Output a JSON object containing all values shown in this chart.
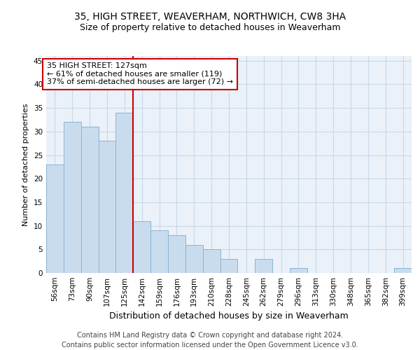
{
  "title1": "35, HIGH STREET, WEAVERHAM, NORTHWICH, CW8 3HA",
  "title2": "Size of property relative to detached houses in Weaverham",
  "xlabel": "Distribution of detached houses by size in Weaverham",
  "ylabel": "Number of detached properties",
  "categories": [
    "56sqm",
    "73sqm",
    "90sqm",
    "107sqm",
    "125sqm",
    "142sqm",
    "159sqm",
    "176sqm",
    "193sqm",
    "210sqm",
    "228sqm",
    "245sqm",
    "262sqm",
    "279sqm",
    "296sqm",
    "313sqm",
    "330sqm",
    "348sqm",
    "365sqm",
    "382sqm",
    "399sqm"
  ],
  "values": [
    23,
    32,
    31,
    28,
    34,
    11,
    9,
    8,
    6,
    5,
    3,
    0,
    3,
    0,
    1,
    0,
    0,
    0,
    0,
    0,
    1
  ],
  "bar_color": "#c9dcee",
  "bar_edge_color": "#8ab4d4",
  "vline_index": 4.5,
  "vline_color": "#cc0000",
  "annotation_text": "35 HIGH STREET: 127sqm\n← 61% of detached houses are smaller (119)\n37% of semi-detached houses are larger (72) →",
  "annotation_box_color": "white",
  "annotation_box_edge_color": "#cc0000",
  "ylim": [
    0,
    46
  ],
  "yticks": [
    0,
    5,
    10,
    15,
    20,
    25,
    30,
    35,
    40,
    45
  ],
  "grid_color": "#c8d8e8",
  "bg_color": "#eaf1f8",
  "footnote": "Contains HM Land Registry data © Crown copyright and database right 2024.\nContains public sector information licensed under the Open Government Licence v3.0.",
  "title1_fontsize": 10,
  "title2_fontsize": 9,
  "footnote_fontsize": 7,
  "ylabel_fontsize": 8,
  "xlabel_fontsize": 9,
  "tick_fontsize": 7.5,
  "annot_fontsize": 8
}
